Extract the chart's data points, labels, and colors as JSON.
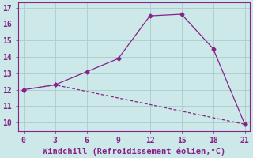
{
  "line1_x": [
    0,
    3,
    6,
    9,
    12,
    15,
    18,
    21
  ],
  "line1_y": [
    12.0,
    12.3,
    13.1,
    13.9,
    16.5,
    16.6,
    14.5,
    9.9
  ],
  "line2_x": [
    0,
    3,
    21
  ],
  "line2_y": [
    12.0,
    12.3,
    9.9
  ],
  "line_color": "#882288",
  "marker": "D",
  "markersize": 2.5,
  "xlabel": "Windchill (Refroidissement éolien,°C)",
  "xlim": [
    -0.5,
    21.5
  ],
  "ylim": [
    9.5,
    17.3
  ],
  "xticks": [
    0,
    3,
    6,
    9,
    12,
    15,
    18,
    21
  ],
  "yticks": [
    10,
    11,
    12,
    13,
    14,
    15,
    16,
    17
  ],
  "bg_color": "#cce8e8",
  "grid_color": "#aacccc",
  "xlabel_fontsize": 7.5,
  "tick_fontsize": 7
}
